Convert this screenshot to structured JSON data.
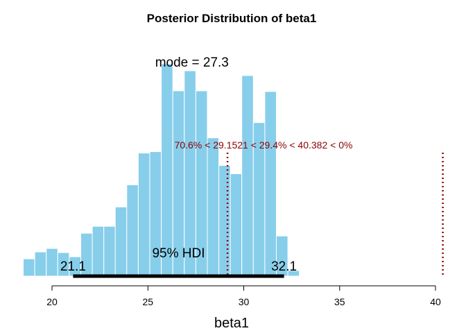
{
  "chart_data": {
    "type": "bar",
    "title": "Posterior Distribution of beta1",
    "xlabel": "beta1",
    "ylabel": "",
    "xlim": [
      18.5,
      40.5
    ],
    "ylim": [
      0,
      310
    ],
    "x_ticks": [
      "20",
      "25",
      "30",
      "35",
      "40"
    ],
    "bin_width": 0.6,
    "bins": [
      {
        "x": 18.8,
        "count": 25
      },
      {
        "x": 19.4,
        "count": 35
      },
      {
        "x": 20.0,
        "count": 40
      },
      {
        "x": 20.6,
        "count": 34
      },
      {
        "x": 21.2,
        "count": 28
      },
      {
        "x": 21.8,
        "count": 62
      },
      {
        "x": 22.4,
        "count": 72
      },
      {
        "x": 23.0,
        "count": 72
      },
      {
        "x": 23.6,
        "count": 100
      },
      {
        "x": 24.2,
        "count": 132
      },
      {
        "x": 24.8,
        "count": 178
      },
      {
        "x": 25.4,
        "count": 180
      },
      {
        "x": 26.0,
        "count": 307
      },
      {
        "x": 26.6,
        "count": 268
      },
      {
        "x": 27.2,
        "count": 297
      },
      {
        "x": 27.8,
        "count": 268
      },
      {
        "x": 28.4,
        "count": 200
      },
      {
        "x": 29.0,
        "count": 160
      },
      {
        "x": 29.6,
        "count": 148
      },
      {
        "x": 30.2,
        "count": 290
      },
      {
        "x": 30.8,
        "count": 222
      },
      {
        "x": 31.4,
        "count": 267
      },
      {
        "x": 32.0,
        "count": 58
      },
      {
        "x": 32.6,
        "count": 8
      }
    ],
    "bar_color": "#87ceeb",
    "mode": {
      "label": "mode = 27.3",
      "value": 27.3
    },
    "hdi": {
      "label": "95% HDI",
      "low": 21.1,
      "high": 32.1,
      "low_label": "21.1",
      "high_label": "32.1",
      "color": "#000000"
    },
    "comp_lines": [
      {
        "value": 29.1521,
        "color": "#8b0000"
      },
      {
        "value": 40.382,
        "color": "#8b0000"
      }
    ],
    "comp_label": "70.6% < 29.1521 < 29.4% < 40.382 < 0%"
  }
}
